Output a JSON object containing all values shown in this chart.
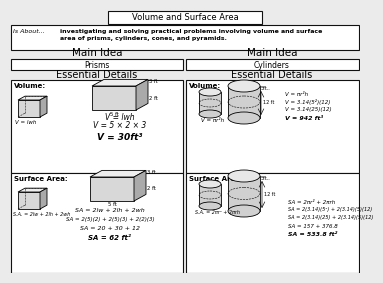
{
  "title": "Volume and Surface Area",
  "is_about_label": "Is About...",
  "is_about_line1": "investigating and solving practical problems involving volume and surface",
  "is_about_line2": "area of prisms, cylinders, cones, and pyramids.",
  "main_idea": "Main Idea",
  "prisms_label": "Prisms",
  "cylinders_label": "Cylinders",
  "essential_details": "Essential Details",
  "vol_left_label": "Volume:",
  "vol_left_general": "V = lwh",
  "vol_left_f1": "V = lwh",
  "vol_left_f2": "V = 5 × 2 × 3",
  "vol_left_f3": "V = 30ft³",
  "vol_right_label": "Volume:",
  "vol_right_general": "V = πr²h",
  "vol_right_f1": "V = πr²h",
  "vol_right_f2": "V = 3.14(5²)(12)",
  "vol_right_f3": "V = 3.14(25)(12)",
  "vol_right_f4": "V = 942 ft³",
  "sa_left_label": "Surface Area:",
  "sa_left_general": "S.A. = 2lw + 2lh + 2wh",
  "sa_left_f1": "SA = 2lw + 2lh + 2wh",
  "sa_left_f2": "SA = 2(5)(2) + 2(5)(3) + 2(2)(3)",
  "sa_left_f3": "SA = 20 + 30 + 12",
  "sa_left_f4": "SA = 62 ft²",
  "sa_right_label": "Surface Area:",
  "sa_right_general": "S.A. = 2πr² + 2πrh",
  "sa_right_f1": "SA = 2πr² + 2πrh",
  "sa_right_f2": "SA = 2(3.14)(5²) + 2(3.14)(5)(12)",
  "sa_right_f3": "SA = 2(3.14)(25) + 2(3.14)(5)(12)",
  "sa_right_f4": "SA = 157 + 376.8",
  "sa_right_f5": "SA = 533.8 ft²",
  "dim3": "3 ft",
  "dim2": "2 ft",
  "dim5": "5 ft",
  "dim_r": "5ft..",
  "dim_h": "12 ft",
  "bg_color": "#ebebeb",
  "white": "#ffffff",
  "ec": "#111111",
  "prism_front": "#d8d8d8",
  "prism_top": "#eeeeee",
  "prism_right": "#aaaaaa",
  "cyl_body": "#d0d0d0",
  "cyl_top": "#e8e8e8"
}
